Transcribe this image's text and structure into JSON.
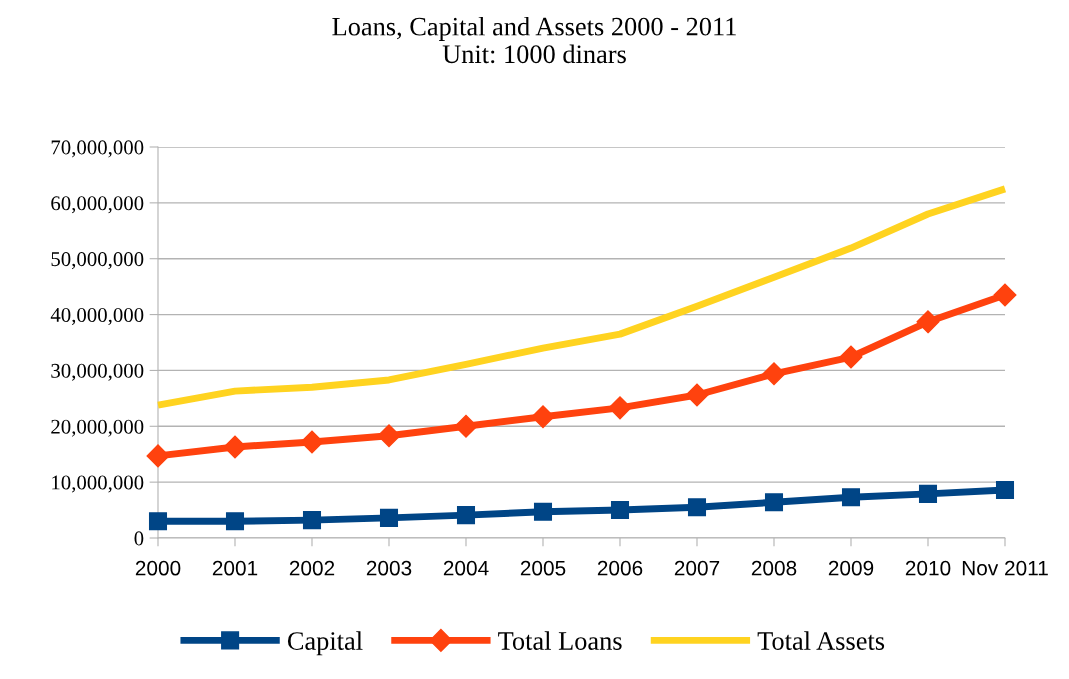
{
  "chart_data": {
    "type": "line",
    "title": "Loans, Capital and Assets 2000 - 2011\nUnit: 1000 dinars",
    "categories": [
      "2000",
      "2001",
      "2002",
      "2003",
      "2004",
      "2005",
      "2006",
      "2007",
      "2008",
      "2009",
      "2010",
      "Nov 2011"
    ],
    "series": [
      {
        "name": "Capital",
        "color": "#004586",
        "marker": "square",
        "values": [
          3000000,
          3000000,
          3200000,
          3600000,
          4100000,
          4700000,
          5000000,
          5500000,
          6400000,
          7300000,
          7900000,
          8600000
        ]
      },
      {
        "name": "Total Loans",
        "color": "#ff420e",
        "marker": "diamond",
        "values": [
          14700000,
          16300000,
          17200000,
          18300000,
          20000000,
          21700000,
          23300000,
          25600000,
          29400000,
          32400000,
          38700000,
          43500000
        ]
      },
      {
        "name": "Total Assets",
        "color": "#ffd320",
        "marker": "none",
        "values": [
          23800000,
          26300000,
          27000000,
          28300000,
          31100000,
          34000000,
          36500000,
          41500000,
          46700000,
          51900000,
          58000000,
          62500000
        ]
      }
    ],
    "ylim": [
      0,
      70000000
    ],
    "yticks": [
      {
        "value": 0,
        "label": "0"
      },
      {
        "value": 10000000,
        "label": "10,000,000"
      },
      {
        "value": 20000000,
        "label": "20,000,000"
      },
      {
        "value": 30000000,
        "label": "30,000,000"
      },
      {
        "value": 40000000,
        "label": "40,000,000"
      },
      {
        "value": 50000000,
        "label": "50,000,000"
      },
      {
        "value": 60000000,
        "label": "60,000,000"
      },
      {
        "value": 70000000,
        "label": "70,000,000"
      }
    ],
    "grid": "y",
    "legend": "bottom",
    "line_style": "solid"
  }
}
